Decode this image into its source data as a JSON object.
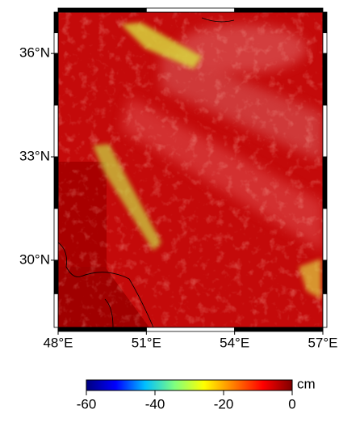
{
  "map": {
    "xlim": [
      48,
      57
    ],
    "ylim": [
      28.05,
      37.2
    ],
    "xticks": [
      {
        "value": 48,
        "label": "48°E"
      },
      {
        "value": 51,
        "label": "51°E"
      },
      {
        "value": 54,
        "label": "54°E"
      },
      {
        "value": 57,
        "label": "57°E"
      }
    ],
    "yticks": [
      {
        "value": 30,
        "label": "30°N"
      },
      {
        "value": 33,
        "label": "33°N"
      },
      {
        "value": 36,
        "label": "36°N"
      }
    ]
  },
  "colorbar": {
    "lim": [
      -60,
      0
    ],
    "ticks": [
      -60,
      -40,
      -20,
      0
    ],
    "unit": "cm",
    "colors": [
      "#00007f",
      "#0000ff",
      "#00bfff",
      "#7fff7f",
      "#ffff00",
      "#ff7f00",
      "#ff0000",
      "#7f0000"
    ]
  }
}
